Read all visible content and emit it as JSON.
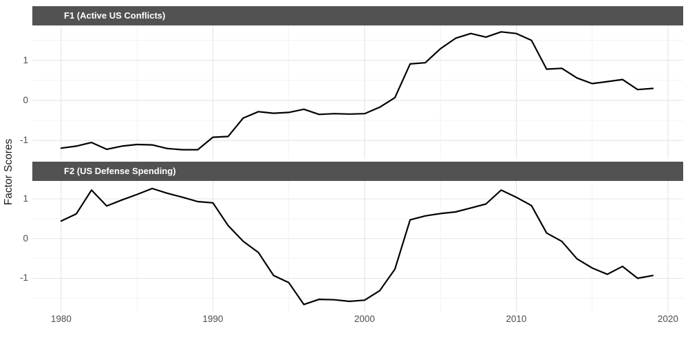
{
  "ylabel": "Factor Scores",
  "colors": {
    "line": "#000000",
    "grid_major": "#e4e4e4",
    "grid_minor": "#f1f1f1",
    "strip_bg": "#525252",
    "strip_text": "#ffffff",
    "tick_text": "#4d4d4d",
    "background": "#ffffff"
  },
  "x_axis": {
    "lim": [
      1978.1,
      2021.0
    ],
    "ticks": {
      "values": [
        1980,
        1990,
        2000,
        2010,
        2020
      ],
      "labels": [
        "1980",
        "1990",
        "2000",
        "2010",
        "2020"
      ]
    },
    "minor": [
      1985,
      1995,
      2005,
      2015
    ]
  },
  "chart_data": [
    {
      "type": "line",
      "title": "F1 (Active US Conflicts)",
      "ylim": [
        -1.46,
        1.87
      ],
      "yticks": {
        "values": [
          -1,
          0,
          1
        ],
        "labels": [
          "-1",
          "0",
          "1"
        ]
      },
      "minor_y": [
        -0.5,
        0.5,
        1.5
      ],
      "x": [
        1980,
        1981,
        1982,
        1983,
        1984,
        1985,
        1986,
        1987,
        1988,
        1989,
        1990,
        1991,
        1992,
        1993,
        1994,
        1995,
        1996,
        1997,
        1998,
        1999,
        2000,
        2001,
        2002,
        2003,
        2004,
        2005,
        2006,
        2007,
        2008,
        2009,
        2010,
        2011,
        2012,
        2013,
        2014,
        2015,
        2016,
        2017,
        2018,
        2019
      ],
      "y": [
        -1.19,
        -1.14,
        -1.05,
        -1.22,
        -1.14,
        -1.1,
        -1.11,
        -1.2,
        -1.23,
        -1.23,
        -0.92,
        -0.9,
        -0.44,
        -0.28,
        -0.32,
        -0.3,
        -0.22,
        -0.35,
        -0.33,
        -0.34,
        -0.33,
        -0.17,
        0.07,
        0.91,
        0.94,
        1.29,
        1.55,
        1.67,
        1.58,
        1.71,
        1.67,
        1.5,
        0.78,
        0.8,
        0.56,
        0.42,
        0.47,
        0.52,
        0.27,
        0.3
      ]
    },
    {
      "type": "line",
      "title": "F2 (US Defense Spending)",
      "ylim": [
        -1.84,
        1.45
      ],
      "yticks": {
        "values": [
          -1,
          0,
          1
        ],
        "labels": [
          "-1",
          "0",
          "1"
        ]
      },
      "minor_y": [
        -1.5,
        -0.5,
        0.5
      ],
      "x": [
        1980,
        1981,
        1982,
        1983,
        1984,
        1985,
        1986,
        1987,
        1988,
        1989,
        1990,
        1991,
        1992,
        1993,
        1994,
        1995,
        1996,
        1997,
        1998,
        1999,
        2000,
        2001,
        2002,
        2003,
        2004,
        2005,
        2006,
        2007,
        2008,
        2009,
        2010,
        2011,
        2012,
        2013,
        2014,
        2015,
        2016,
        2017,
        2018,
        2019
      ],
      "y": [
        0.44,
        0.62,
        1.22,
        0.82,
        0.97,
        1.11,
        1.26,
        1.14,
        1.04,
        0.93,
        0.9,
        0.33,
        -0.07,
        -0.35,
        -0.93,
        -1.11,
        -1.66,
        -1.53,
        -1.54,
        -1.58,
        -1.55,
        -1.31,
        -0.77,
        0.47,
        0.57,
        0.63,
        0.67,
        0.77,
        0.87,
        1.22,
        1.04,
        0.83,
        0.14,
        -0.07,
        -0.51,
        -0.74,
        -0.9,
        -0.7,
        -1.0,
        -0.93
      ]
    }
  ]
}
